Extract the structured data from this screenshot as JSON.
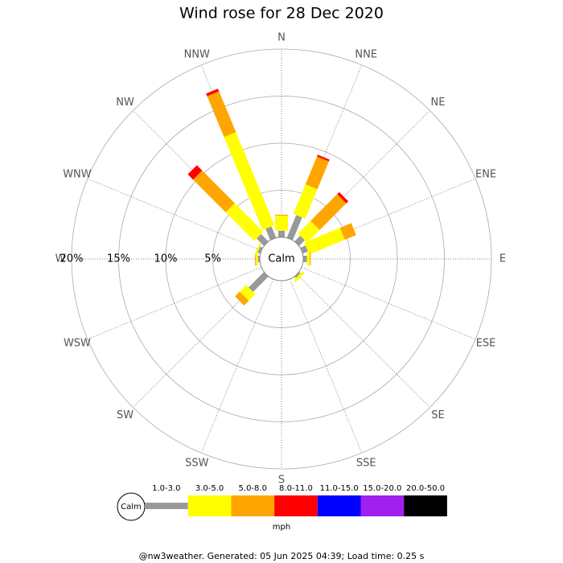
{
  "chart_data": {
    "type": "windrose",
    "title": "Wind rose for 28 Dec 2020",
    "center_label": "Calm",
    "categories": [
      "N",
      "NNE",
      "NE",
      "ENE",
      "E",
      "ESE",
      "SE",
      "SSE",
      "S",
      "SSW",
      "SW",
      "WSW",
      "W",
      "WNW",
      "NW",
      "NNW"
    ],
    "series": [
      {
        "name": "1.0-3.0",
        "color": "#999999",
        "values": [
          0.7,
          2.6,
          0.85,
          0.6,
          0.4,
          0,
          0.2,
          0,
          0,
          0,
          2.3,
          0,
          0.2,
          0.3,
          1.1,
          1.3
        ]
      },
      {
        "name": "3.0-5.0",
        "color": "#ffff00",
        "values": [
          1.6,
          3.4,
          1.9,
          4.1,
          0.3,
          0,
          0.3,
          0,
          0,
          0,
          1.0,
          0,
          0.2,
          0.2,
          4.3,
          10.7
        ]
      },
      {
        "name": "5.0-8.0",
        "color": "#ffa500",
        "values": [
          0.1,
          3.2,
          4.0,
          1.3,
          0.1,
          0,
          0,
          0,
          0,
          0,
          0.7,
          0,
          0.1,
          0,
          4.9,
          4.7
        ]
      },
      {
        "name": "8.0-11.0",
        "color": "#ff0000",
        "values": [
          0,
          0.2,
          0.3,
          0,
          0,
          0,
          0,
          0,
          0,
          0,
          0,
          0,
          0,
          0,
          0.8,
          0.3
        ]
      },
      {
        "name": "11.0-15.0",
        "color": "#0000ff",
        "values": [
          0,
          0,
          0,
          0,
          0,
          0,
          0,
          0,
          0,
          0,
          0,
          0,
          0,
          0,
          0,
          0
        ]
      },
      {
        "name": "15.0-20.0",
        "color": "#a020f0",
        "values": [
          0,
          0,
          0,
          0,
          0,
          0,
          0,
          0,
          0,
          0,
          0,
          0,
          0,
          0,
          0,
          0
        ]
      },
      {
        "name": "20.0-50.0",
        "color": "#000000",
        "values": [
          0,
          0,
          0,
          0,
          0,
          0,
          0,
          0,
          0,
          0,
          0,
          0,
          0,
          0,
          0,
          0
        ]
      }
    ],
    "rlim": [
      0,
      20
    ],
    "rticks": [
      {
        "value": 5,
        "label": "5%"
      },
      {
        "value": 10,
        "label": "10%"
      },
      {
        "value": 15,
        "label": "15%"
      },
      {
        "value": 20,
        "label": "20%"
      }
    ],
    "legend_unit": "mph",
    "footer": "@nw3weather. Generated: 05 Jun 2025 04:39; Load time: 0.25 s"
  }
}
